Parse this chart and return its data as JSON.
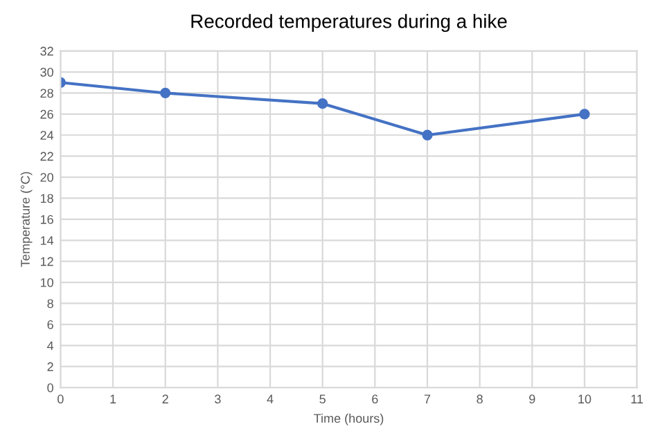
{
  "chart_data": {
    "type": "line",
    "title": "Recorded temperatures during a hike",
    "xlabel": "Time (hours)",
    "ylabel": "Temperature (°C)",
    "x": [
      0,
      2,
      5,
      7,
      10
    ],
    "series": [
      {
        "color": "#4472c4",
        "values": [
          29,
          28,
          27,
          24,
          26
        ]
      }
    ],
    "xlim": [
      0,
      11
    ],
    "xticks": [
      0,
      1,
      2,
      3,
      4,
      5,
      6,
      7,
      8,
      9,
      10,
      11
    ],
    "ylim": [
      0,
      32
    ],
    "yticks": [
      0,
      2,
      4,
      6,
      8,
      10,
      12,
      14,
      16,
      18,
      20,
      22,
      24,
      26,
      28,
      30,
      32
    ],
    "grid": true,
    "marker": "circle",
    "line_style": "solid"
  }
}
